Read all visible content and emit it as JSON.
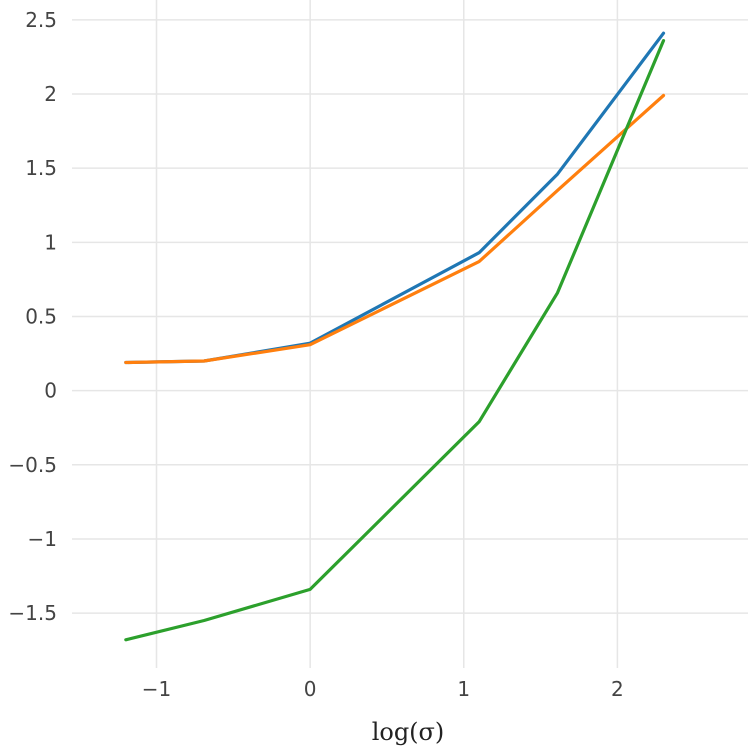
{
  "chart_data": {
    "type": "line",
    "title": "",
    "xlabel": "log(σ)",
    "ylabel": "",
    "grid": true,
    "xlim": [
      -1.55,
      2.85
    ],
    "ylim": [
      -1.87,
      2.58
    ],
    "x_ticks": [
      -1,
      0,
      1,
      2
    ],
    "x_tick_labels": [
      "−1",
      "0",
      "1",
      "2"
    ],
    "y_ticks": [
      2.5,
      2,
      1.5,
      1,
      0.5,
      0,
      -0.5,
      -1,
      -1.5
    ],
    "y_tick_labels": [
      "2.5",
      "2",
      "1.5",
      "1",
      "0.5",
      "0",
      "−0.5",
      "−1",
      "−1.5"
    ],
    "x": [
      -1.2,
      -0.69,
      0,
      1.1,
      1.61,
      2.3
    ],
    "series": [
      {
        "color": "#1f77b4",
        "values": [
          0.19,
          0.2,
          0.32,
          0.93,
          1.46,
          2.41
        ]
      },
      {
        "color": "#ff7f0e",
        "values": [
          0.19,
          0.2,
          0.31,
          0.87,
          1.35,
          1.99
        ]
      },
      {
        "color": "#2ca02c",
        "values": [
          -1.68,
          -1.55,
          -1.34,
          -0.21,
          0.66,
          2.36
        ]
      }
    ]
  }
}
